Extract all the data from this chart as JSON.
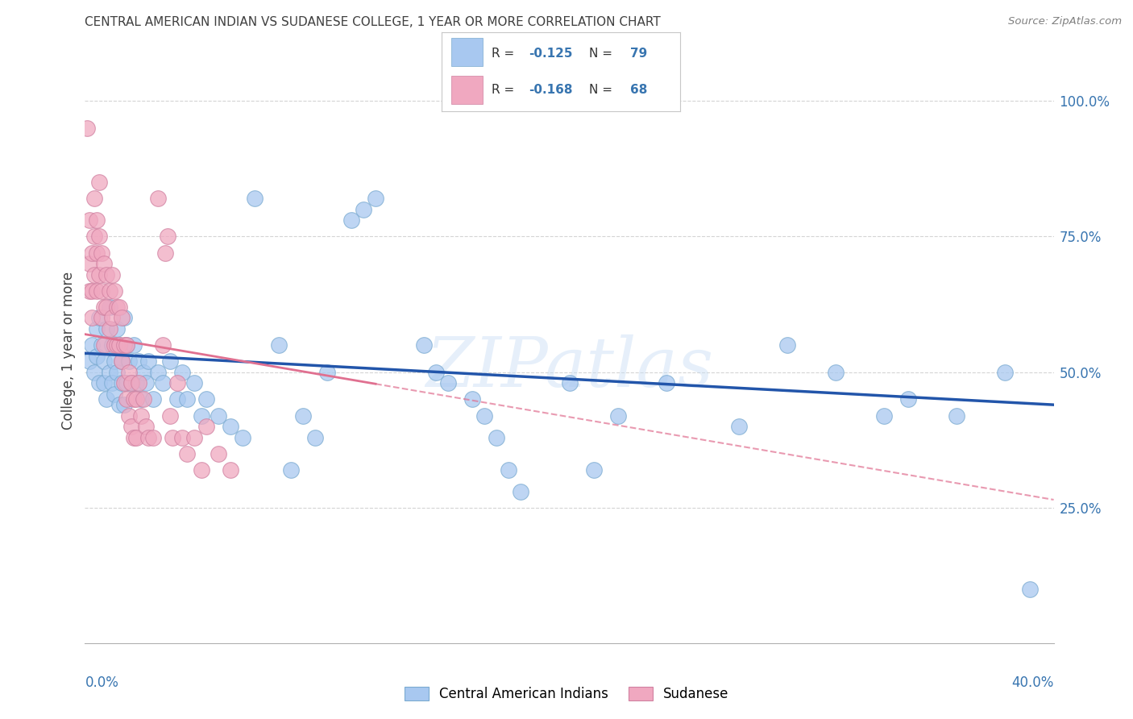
{
  "title": "CENTRAL AMERICAN INDIAN VS SUDANESE COLLEGE, 1 YEAR OR MORE CORRELATION CHART",
  "source": "Source: ZipAtlas.com",
  "ylabel": "College, 1 year or more",
  "xmin": 0.0,
  "xmax": 0.4,
  "ymin": 0.0,
  "ymax": 1.08,
  "watermark": "ZIPatlas",
  "blue_R": -0.125,
  "blue_N": 79,
  "pink_R": -0.168,
  "pink_N": 68,
  "blue_dots": [
    [
      0.002,
      0.52
    ],
    [
      0.003,
      0.55
    ],
    [
      0.004,
      0.5
    ],
    [
      0.005,
      0.58
    ],
    [
      0.005,
      0.53
    ],
    [
      0.006,
      0.6
    ],
    [
      0.006,
      0.48
    ],
    [
      0.007,
      0.55
    ],
    [
      0.008,
      0.52
    ],
    [
      0.008,
      0.48
    ],
    [
      0.009,
      0.58
    ],
    [
      0.009,
      0.45
    ],
    [
      0.01,
      0.62
    ],
    [
      0.01,
      0.5
    ],
    [
      0.011,
      0.55
    ],
    [
      0.011,
      0.48
    ],
    [
      0.012,
      0.52
    ],
    [
      0.012,
      0.46
    ],
    [
      0.013,
      0.58
    ],
    [
      0.013,
      0.5
    ],
    [
      0.014,
      0.55
    ],
    [
      0.014,
      0.44
    ],
    [
      0.015,
      0.52
    ],
    [
      0.015,
      0.48
    ],
    [
      0.016,
      0.6
    ],
    [
      0.016,
      0.44
    ],
    [
      0.017,
      0.55
    ],
    [
      0.017,
      0.48
    ],
    [
      0.018,
      0.52
    ],
    [
      0.019,
      0.48
    ],
    [
      0.02,
      0.55
    ],
    [
      0.021,
      0.48
    ],
    [
      0.022,
      0.52
    ],
    [
      0.023,
      0.45
    ],
    [
      0.024,
      0.5
    ],
    [
      0.025,
      0.48
    ],
    [
      0.026,
      0.52
    ],
    [
      0.028,
      0.45
    ],
    [
      0.03,
      0.5
    ],
    [
      0.032,
      0.48
    ],
    [
      0.035,
      0.52
    ],
    [
      0.038,
      0.45
    ],
    [
      0.04,
      0.5
    ],
    [
      0.042,
      0.45
    ],
    [
      0.045,
      0.48
    ],
    [
      0.048,
      0.42
    ],
    [
      0.05,
      0.45
    ],
    [
      0.055,
      0.42
    ],
    [
      0.06,
      0.4
    ],
    [
      0.065,
      0.38
    ],
    [
      0.07,
      0.82
    ],
    [
      0.08,
      0.55
    ],
    [
      0.085,
      0.32
    ],
    [
      0.09,
      0.42
    ],
    [
      0.095,
      0.38
    ],
    [
      0.1,
      0.5
    ],
    [
      0.11,
      0.78
    ],
    [
      0.115,
      0.8
    ],
    [
      0.12,
      0.82
    ],
    [
      0.14,
      0.55
    ],
    [
      0.145,
      0.5
    ],
    [
      0.15,
      0.48
    ],
    [
      0.16,
      0.45
    ],
    [
      0.165,
      0.42
    ],
    [
      0.17,
      0.38
    ],
    [
      0.175,
      0.32
    ],
    [
      0.18,
      0.28
    ],
    [
      0.2,
      0.48
    ],
    [
      0.21,
      0.32
    ],
    [
      0.22,
      0.42
    ],
    [
      0.24,
      0.48
    ],
    [
      0.27,
      0.4
    ],
    [
      0.29,
      0.55
    ],
    [
      0.31,
      0.5
    ],
    [
      0.33,
      0.42
    ],
    [
      0.34,
      0.45
    ],
    [
      0.36,
      0.42
    ],
    [
      0.38,
      0.5
    ],
    [
      0.39,
      0.1
    ]
  ],
  "pink_dots": [
    [
      0.001,
      0.95
    ],
    [
      0.002,
      0.78
    ],
    [
      0.002,
      0.7
    ],
    [
      0.002,
      0.65
    ],
    [
      0.003,
      0.72
    ],
    [
      0.003,
      0.65
    ],
    [
      0.003,
      0.6
    ],
    [
      0.004,
      0.82
    ],
    [
      0.004,
      0.75
    ],
    [
      0.004,
      0.68
    ],
    [
      0.005,
      0.78
    ],
    [
      0.005,
      0.72
    ],
    [
      0.005,
      0.65
    ],
    [
      0.006,
      0.85
    ],
    [
      0.006,
      0.75
    ],
    [
      0.006,
      0.68
    ],
    [
      0.007,
      0.72
    ],
    [
      0.007,
      0.65
    ],
    [
      0.007,
      0.6
    ],
    [
      0.008,
      0.7
    ],
    [
      0.008,
      0.62
    ],
    [
      0.008,
      0.55
    ],
    [
      0.009,
      0.68
    ],
    [
      0.009,
      0.62
    ],
    [
      0.01,
      0.65
    ],
    [
      0.01,
      0.58
    ],
    [
      0.011,
      0.68
    ],
    [
      0.011,
      0.6
    ],
    [
      0.012,
      0.65
    ],
    [
      0.012,
      0.55
    ],
    [
      0.013,
      0.62
    ],
    [
      0.013,
      0.55
    ],
    [
      0.014,
      0.62
    ],
    [
      0.014,
      0.55
    ],
    [
      0.015,
      0.6
    ],
    [
      0.015,
      0.52
    ],
    [
      0.016,
      0.55
    ],
    [
      0.016,
      0.48
    ],
    [
      0.017,
      0.55
    ],
    [
      0.017,
      0.45
    ],
    [
      0.018,
      0.5
    ],
    [
      0.018,
      0.42
    ],
    [
      0.019,
      0.48
    ],
    [
      0.019,
      0.4
    ],
    [
      0.02,
      0.45
    ],
    [
      0.02,
      0.38
    ],
    [
      0.021,
      0.45
    ],
    [
      0.021,
      0.38
    ],
    [
      0.022,
      0.48
    ],
    [
      0.023,
      0.42
    ],
    [
      0.024,
      0.45
    ],
    [
      0.025,
      0.4
    ],
    [
      0.026,
      0.38
    ],
    [
      0.028,
      0.38
    ],
    [
      0.03,
      0.82
    ],
    [
      0.032,
      0.55
    ],
    [
      0.033,
      0.72
    ],
    [
      0.034,
      0.75
    ],
    [
      0.035,
      0.42
    ],
    [
      0.036,
      0.38
    ],
    [
      0.038,
      0.48
    ],
    [
      0.04,
      0.38
    ],
    [
      0.042,
      0.35
    ],
    [
      0.045,
      0.38
    ],
    [
      0.048,
      0.32
    ],
    [
      0.05,
      0.4
    ],
    [
      0.055,
      0.35
    ],
    [
      0.06,
      0.32
    ]
  ],
  "blue_line": [
    [
      0.0,
      0.535
    ],
    [
      0.4,
      0.44
    ]
  ],
  "pink_line": [
    [
      0.0,
      0.57
    ],
    [
      0.4,
      0.265
    ]
  ],
  "pink_line_solid_end": 0.12,
  "title_color": "#404040",
  "source_color": "#808080",
  "axis_label_color": "#3875b0",
  "grid_color": "#d0d0d0",
  "bg_color": "#ffffff",
  "blue_dot_color": "#a8c8f0",
  "blue_dot_edge": "#7aaad0",
  "pink_dot_color": "#f0a8c0",
  "pink_dot_edge": "#d080a0",
  "blue_line_color": "#2255aa",
  "pink_line_color": "#e07090",
  "ytick_vals": [
    0.25,
    0.5,
    0.75,
    1.0
  ],
  "ytick_labels": [
    "25.0%",
    "50.0%",
    "75.0%",
    "100.0%"
  ]
}
